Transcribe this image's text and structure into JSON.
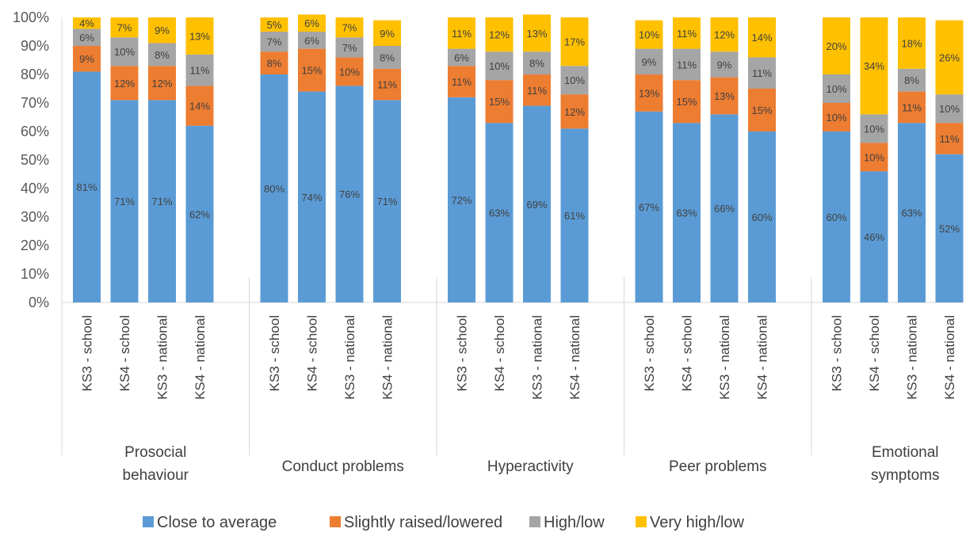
{
  "chart_data": {
    "type": "bar",
    "stacked": true,
    "percent_stacked": true,
    "ylim": [
      0,
      100
    ],
    "y_ticks": [
      "0%",
      "10%",
      "20%",
      "30%",
      "40%",
      "50%",
      "60%",
      "70%",
      "80%",
      "90%",
      "100%"
    ],
    "grid": false,
    "legend_position": "bottom",
    "groups": [
      {
        "label": "Prosocial behaviour",
        "lines": [
          "Prosocial",
          "behaviour"
        ]
      },
      {
        "label": "Conduct problems",
        "lines": [
          "Conduct problems"
        ]
      },
      {
        "label": "Hyperactivity",
        "lines": [
          "Hyperactivity"
        ]
      },
      {
        "label": "Peer problems",
        "lines": [
          "Peer problems"
        ]
      },
      {
        "label": "Emotional symptoms",
        "lines": [
          "Emotional",
          "symptoms"
        ]
      }
    ],
    "categories_per_group": [
      "KS3 - school",
      "KS4 - school",
      "KS3 - national",
      "KS4 - national"
    ],
    "series": [
      {
        "name": "Close to average",
        "color": "#5B9BD5",
        "values": [
          81,
          71,
          71,
          62,
          80,
          74,
          76,
          71,
          72,
          63,
          69,
          61,
          67,
          63,
          66,
          60,
          60,
          46,
          63,
          52
        ],
        "labels": [
          "81%",
          "71%",
          "71%",
          "62%",
          "80%",
          "74%",
          "76%",
          "71%",
          "72%",
          "63%",
          "69%",
          "61%",
          "67%",
          "63%",
          "66%",
          "60%",
          "60%",
          "46%",
          "63%",
          "52%"
        ]
      },
      {
        "name": "Slightly raised/lowered",
        "color": "#ED7D31",
        "values": [
          9,
          12,
          12,
          14,
          8,
          15,
          10,
          11,
          11,
          15,
          11,
          12,
          13,
          15,
          13,
          15,
          10,
          10,
          11,
          11
        ],
        "labels": [
          "9%",
          "12%",
          "12%",
          "14%",
          "8%",
          "15%",
          "10%",
          "11%",
          "11%",
          "15%",
          "11%",
          "12%",
          "13%",
          "15%",
          "13%",
          "15%",
          "10%",
          "10%",
          "11%",
          "11%"
        ]
      },
      {
        "name": "High/low",
        "color": "#A5A5A5",
        "values": [
          6,
          10,
          8,
          11,
          7,
          6,
          7,
          8,
          6,
          10,
          8,
          10,
          9,
          11,
          9,
          11,
          10,
          10,
          8,
          10
        ],
        "labels": [
          "6%",
          "10%",
          "8%",
          "11%",
          "7%",
          "6%",
          "7%",
          "8%",
          "6%",
          "10%",
          "8%",
          "10%",
          "9%",
          "11%",
          "9%",
          "11%",
          "10%",
          "10%",
          "8%",
          "10%"
        ]
      },
      {
        "name": "Very high/low",
        "color": "#FFC000",
        "values": [
          4,
          7,
          9,
          13,
          5,
          6,
          7,
          9,
          11,
          12,
          13,
          17,
          10,
          11,
          12,
          14,
          20,
          34,
          18,
          26
        ],
        "labels": [
          "4%",
          "7%",
          "9%",
          "13%",
          "5%",
          "6%",
          "7%",
          "9%",
          "11%",
          "12%",
          "13%",
          "17%",
          "10%",
          "11%",
          "12%",
          "14%",
          "20%",
          "34%",
          "18%",
          "26%"
        ]
      }
    ]
  }
}
